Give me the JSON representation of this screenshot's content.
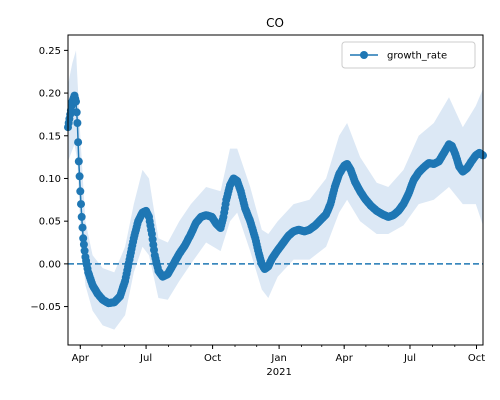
{
  "chart_data": {
    "type": "line",
    "title": "CO",
    "xlabel": "",
    "ylabel": "",
    "xlim": [
      "2020-03-15",
      "2021-10-10"
    ],
    "ylim": [
      -0.095,
      0.268
    ],
    "yticks": [
      -0.05,
      0.0,
      0.05,
      0.1,
      0.15,
      0.2,
      0.25
    ],
    "ytick_labels": [
      "−0.05",
      "0.00",
      "0.05",
      "0.10",
      "0.15",
      "0.20",
      "0.25"
    ],
    "xticks": [
      {
        "date": "2020-04-01",
        "label": "Apr"
      },
      {
        "date": "2020-07-01",
        "label": "Jul"
      },
      {
        "date": "2020-10-01",
        "label": "Oct"
      },
      {
        "date": "2021-01-01",
        "label": "Jan"
      },
      {
        "date": "2021-04-01",
        "label": "Apr"
      },
      {
        "date": "2021-07-01",
        "label": "Jul"
      },
      {
        "date": "2021-10-01",
        "label": "Oct"
      }
    ],
    "year_label": "2021",
    "minor_ticks_monthly": true,
    "reference_line": {
      "y": 0.0,
      "style": "dashed"
    },
    "legend": {
      "position": "top-right",
      "entries": [
        "growth_rate"
      ]
    },
    "colors": {
      "series": "#1f77b4",
      "band": "#dce8f5"
    },
    "series": [
      {
        "name": "growth_rate",
        "points": [
          [
            "2020-03-15",
            0.16
          ],
          [
            "2020-03-18",
            0.175
          ],
          [
            "2020-03-21",
            0.19
          ],
          [
            "2020-03-24",
            0.197
          ],
          [
            "2020-03-26",
            0.19
          ],
          [
            "2020-03-28",
            0.165
          ],
          [
            "2020-03-30",
            0.12
          ],
          [
            "2020-04-01",
            0.085
          ],
          [
            "2020-04-03",
            0.055
          ],
          [
            "2020-04-05",
            0.03
          ],
          [
            "2020-04-08",
            0.008
          ],
          [
            "2020-04-12",
            -0.01
          ],
          [
            "2020-04-18",
            -0.025
          ],
          [
            "2020-04-25",
            -0.035
          ],
          [
            "2020-05-02",
            -0.042
          ],
          [
            "2020-05-10",
            -0.046
          ],
          [
            "2020-05-18",
            -0.045
          ],
          [
            "2020-05-26",
            -0.038
          ],
          [
            "2020-06-02",
            -0.02
          ],
          [
            "2020-06-08",
            0.005
          ],
          [
            "2020-06-14",
            0.03
          ],
          [
            "2020-06-20",
            0.05
          ],
          [
            "2020-06-26",
            0.06
          ],
          [
            "2020-07-01",
            0.062
          ],
          [
            "2020-07-05",
            0.055
          ],
          [
            "2020-07-09",
            0.035
          ],
          [
            "2020-07-13",
            0.01
          ],
          [
            "2020-07-18",
            -0.008
          ],
          [
            "2020-07-24",
            -0.015
          ],
          [
            "2020-07-31",
            -0.012
          ],
          [
            "2020-08-08",
            0.0
          ],
          [
            "2020-08-16",
            0.012
          ],
          [
            "2020-08-24",
            0.022
          ],
          [
            "2020-09-01",
            0.035
          ],
          [
            "2020-09-08",
            0.048
          ],
          [
            "2020-09-15",
            0.055
          ],
          [
            "2020-09-22",
            0.057
          ],
          [
            "2020-09-30",
            0.055
          ],
          [
            "2020-10-06",
            0.047
          ],
          [
            "2020-10-12",
            0.042
          ],
          [
            "2020-10-16",
            0.055
          ],
          [
            "2020-10-20",
            0.075
          ],
          [
            "2020-10-25",
            0.092
          ],
          [
            "2020-10-30",
            0.1
          ],
          [
            "2020-11-04",
            0.097
          ],
          [
            "2020-11-09",
            0.085
          ],
          [
            "2020-11-15",
            0.065
          ],
          [
            "2020-11-22",
            0.05
          ],
          [
            "2020-11-29",
            0.03
          ],
          [
            "2020-12-04",
            0.012
          ],
          [
            "2020-12-08",
            0.0
          ],
          [
            "2020-12-12",
            -0.006
          ],
          [
            "2020-12-17",
            -0.003
          ],
          [
            "2020-12-22",
            0.006
          ],
          [
            "2020-12-30",
            0.016
          ],
          [
            "2021-01-07",
            0.025
          ],
          [
            "2021-01-14",
            0.033
          ],
          [
            "2021-01-21",
            0.038
          ],
          [
            "2021-01-28",
            0.04
          ],
          [
            "2021-02-05",
            0.038
          ],
          [
            "2021-02-12",
            0.04
          ],
          [
            "2021-02-20",
            0.045
          ],
          [
            "2021-02-28",
            0.052
          ],
          [
            "2021-03-07",
            0.058
          ],
          [
            "2021-03-13",
            0.07
          ],
          [
            "2021-03-19",
            0.09
          ],
          [
            "2021-03-25",
            0.105
          ],
          [
            "2021-04-01",
            0.115
          ],
          [
            "2021-04-05",
            0.117
          ],
          [
            "2021-04-10",
            0.11
          ],
          [
            "2021-04-16",
            0.096
          ],
          [
            "2021-04-23",
            0.085
          ],
          [
            "2021-04-30",
            0.076
          ],
          [
            "2021-05-08",
            0.068
          ],
          [
            "2021-05-16",
            0.062
          ],
          [
            "2021-05-24",
            0.058
          ],
          [
            "2021-06-01",
            0.055
          ],
          [
            "2021-06-08",
            0.057
          ],
          [
            "2021-06-15",
            0.062
          ],
          [
            "2021-06-22",
            0.07
          ],
          [
            "2021-06-29",
            0.082
          ],
          [
            "2021-07-06",
            0.098
          ],
          [
            "2021-07-13",
            0.107
          ],
          [
            "2021-07-20",
            0.113
          ],
          [
            "2021-07-27",
            0.118
          ],
          [
            "2021-08-03",
            0.117
          ],
          [
            "2021-08-10",
            0.12
          ],
          [
            "2021-08-17",
            0.13
          ],
          [
            "2021-08-24",
            0.14
          ],
          [
            "2021-08-28",
            0.138
          ],
          [
            "2021-09-02",
            0.128
          ],
          [
            "2021-09-07",
            0.114
          ],
          [
            "2021-09-12",
            0.108
          ],
          [
            "2021-09-18",
            0.112
          ],
          [
            "2021-09-24",
            0.12
          ],
          [
            "2021-09-30",
            0.127
          ],
          [
            "2021-10-05",
            0.13
          ],
          [
            "2021-10-10",
            0.127
          ]
        ],
        "ci_lower": [
          [
            "2020-03-15",
            0.12
          ],
          [
            "2020-03-24",
            0.14
          ],
          [
            "2020-03-28",
            0.12
          ],
          [
            "2020-04-01",
            0.04
          ],
          [
            "2020-04-08",
            -0.025
          ],
          [
            "2020-04-18",
            -0.055
          ],
          [
            "2020-05-02",
            -0.072
          ],
          [
            "2020-05-18",
            -0.077
          ],
          [
            "2020-06-02",
            -0.06
          ],
          [
            "2020-06-14",
            -0.01
          ],
          [
            "2020-06-26",
            0.02
          ],
          [
            "2020-07-05",
            0.01
          ],
          [
            "2020-07-18",
            -0.04
          ],
          [
            "2020-07-31",
            -0.042
          ],
          [
            "2020-08-16",
            -0.02
          ],
          [
            "2020-09-01",
            0.0
          ],
          [
            "2020-09-22",
            0.025
          ],
          [
            "2020-10-12",
            0.015
          ],
          [
            "2020-10-25",
            0.05
          ],
          [
            "2020-11-04",
            0.06
          ],
          [
            "2020-11-22",
            0.015
          ],
          [
            "2020-12-08",
            -0.03
          ],
          [
            "2020-12-17",
            -0.04
          ],
          [
            "2020-12-30",
            -0.015
          ],
          [
            "2021-01-21",
            0.005
          ],
          [
            "2021-02-12",
            0.005
          ],
          [
            "2021-03-07",
            0.02
          ],
          [
            "2021-03-25",
            0.06
          ],
          [
            "2021-04-05",
            0.075
          ],
          [
            "2021-04-23",
            0.05
          ],
          [
            "2021-05-16",
            0.035
          ],
          [
            "2021-06-01",
            0.035
          ],
          [
            "2021-06-22",
            0.045
          ],
          [
            "2021-07-13",
            0.07
          ],
          [
            "2021-08-03",
            0.075
          ],
          [
            "2021-08-24",
            0.09
          ],
          [
            "2021-09-12",
            0.07
          ],
          [
            "2021-09-30",
            0.07
          ],
          [
            "2021-10-10",
            0.045
          ]
        ],
        "ci_upper": [
          [
            "2020-03-15",
            0.21
          ],
          [
            "2020-03-21",
            0.235
          ],
          [
            "2020-03-26",
            0.25
          ],
          [
            "2020-04-01",
            0.15
          ],
          [
            "2020-04-08",
            0.05
          ],
          [
            "2020-04-18",
            0.01
          ],
          [
            "2020-05-02",
            -0.005
          ],
          [
            "2020-05-18",
            -0.01
          ],
          [
            "2020-06-02",
            0.02
          ],
          [
            "2020-06-14",
            0.07
          ],
          [
            "2020-06-26",
            0.11
          ],
          [
            "2020-07-05",
            0.1
          ],
          [
            "2020-07-18",
            0.03
          ],
          [
            "2020-07-31",
            0.025
          ],
          [
            "2020-08-16",
            0.05
          ],
          [
            "2020-09-01",
            0.07
          ],
          [
            "2020-09-22",
            0.09
          ],
          [
            "2020-10-12",
            0.085
          ],
          [
            "2020-10-25",
            0.135
          ],
          [
            "2020-11-04",
            0.135
          ],
          [
            "2020-11-22",
            0.09
          ],
          [
            "2020-12-08",
            0.04
          ],
          [
            "2020-12-17",
            0.035
          ],
          [
            "2020-12-30",
            0.05
          ],
          [
            "2021-01-21",
            0.07
          ],
          [
            "2021-02-12",
            0.075
          ],
          [
            "2021-03-07",
            0.1
          ],
          [
            "2021-03-25",
            0.15
          ],
          [
            "2021-04-05",
            0.165
          ],
          [
            "2021-04-23",
            0.125
          ],
          [
            "2021-05-16",
            0.095
          ],
          [
            "2021-06-01",
            0.09
          ],
          [
            "2021-06-22",
            0.11
          ],
          [
            "2021-07-13",
            0.15
          ],
          [
            "2021-08-03",
            0.165
          ],
          [
            "2021-08-24",
            0.195
          ],
          [
            "2021-09-12",
            0.16
          ],
          [
            "2021-09-30",
            0.185
          ],
          [
            "2021-10-10",
            0.205
          ]
        ]
      }
    ]
  }
}
